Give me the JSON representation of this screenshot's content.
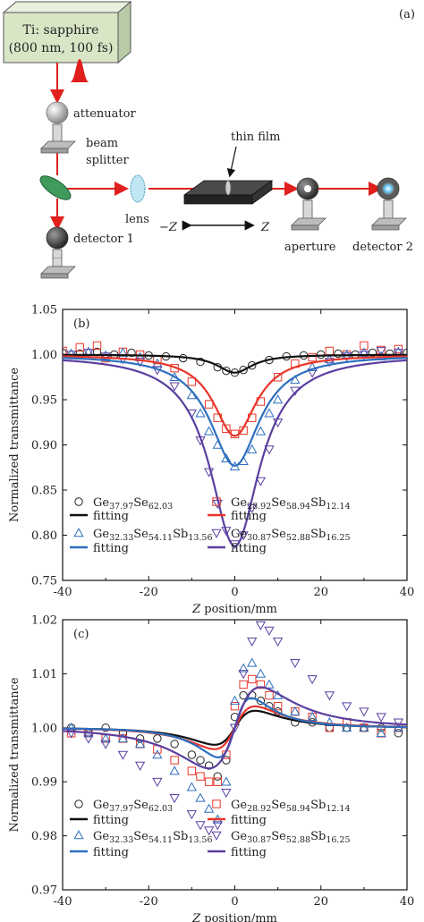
{
  "diagram": {
    "panel_label": "(a)",
    "laser_line1": "Ti: sapphire",
    "laser_line2": "(800 nm, 100 fs)",
    "attenuator": "attenuator",
    "beam_splitter_1": "beam",
    "beam_splitter_2": "splitter",
    "thin_film": "thin film",
    "lens": "lens",
    "minus_z": "−Z",
    "plus_z": "Z",
    "aperture": "aperture",
    "detector1": "detector 1",
    "detector2": "detector 2"
  },
  "chart_data": [
    {
      "type": "scatter",
      "panel_label": "(b)",
      "xlabel": "Z position/mm",
      "ylabel": "Normalized transmittance",
      "xlim": [
        -40,
        40
      ],
      "ylim": [
        0.75,
        1.05
      ],
      "xticks": [
        -40,
        -20,
        0,
        20,
        40
      ],
      "yticks": [
        0.75,
        0.8,
        0.85,
        0.9,
        0.95,
        1.0,
        1.05
      ],
      "legend": [
        {
          "marker": "circle",
          "color": "#222222",
          "base": "Ge",
          "s1": "37.97",
          "m": "Se",
          "s2": "62.03",
          "t": "",
          "s3": ""
        },
        {
          "marker": "square",
          "color": "#e8352a",
          "base": "Ge",
          "s1": "28.92",
          "m": "Se",
          "s2": "58.94",
          "t": "Sb",
          "s3": "12.14"
        },
        {
          "marker": "line",
          "color": "#111111",
          "text": "fitting"
        },
        {
          "marker": "line",
          "color": "#e8352a",
          "text": "fitting"
        },
        {
          "marker": "triangle",
          "color": "#2d6fbe",
          "base": "Ge",
          "s1": "32.33",
          "m": "Se",
          "s2": "54.11",
          "t": "Sb",
          "s3": "13.56"
        },
        {
          "marker": "invtriangle",
          "color": "#5a3fa0",
          "base": "Ge",
          "s1": "30.87",
          "m": "Se",
          "s2": "52.88",
          "t": "Sb",
          "s3": "16.25"
        },
        {
          "marker": "line",
          "color": "#2d6fbe",
          "text": "fitting"
        },
        {
          "marker": "line",
          "color": "#5a3fa0",
          "text": "fitting"
        }
      ],
      "series": [
        {
          "name": "Ge37.97Se62.03",
          "color": "#222222",
          "marker": "circle",
          "fit": {
            "kind": "valley",
            "depth": 0.02,
            "width": 5
          },
          "x": [
            -40,
            -36,
            -32,
            -28,
            -24,
            -20,
            -16,
            -12,
            -8,
            -4,
            -2,
            0,
            2,
            4,
            8,
            12,
            16,
            20,
            24,
            28,
            32,
            36,
            40
          ],
          "y": [
            1.002,
            1.001,
            1.003,
            1.0,
            1.002,
            0.999,
            0.998,
            0.996,
            0.992,
            0.986,
            0.982,
            0.98,
            0.983,
            0.988,
            0.994,
            0.998,
            0.999,
            1.0,
            1.001,
            1.0,
            1.002,
            1.001,
            1.002
          ]
        },
        {
          "name": "Ge28.92Se58.94Sb12.14",
          "color": "#e8352a",
          "marker": "square",
          "fit": {
            "kind": "valley",
            "depth": 0.09,
            "width": 6
          },
          "x": [
            -40,
            -36,
            -32,
            -30,
            -26,
            -22,
            -18,
            -14,
            -10,
            -6,
            -4,
            -2,
            0,
            2,
            4,
            6,
            10,
            14,
            18,
            22,
            26,
            30,
            34,
            38
          ],
          "y": [
            1.004,
            1.008,
            1.01,
            0.996,
            1.003,
            1.0,
            0.994,
            0.985,
            0.97,
            0.945,
            0.93,
            0.918,
            0.912,
            0.916,
            0.93,
            0.948,
            0.975,
            0.99,
            0.997,
            1.004,
            1.0,
            1.01,
            1.005,
            1.006
          ]
        },
        {
          "name": "Ge32.33Se54.11Sb13.56",
          "color": "#2d6fbe",
          "marker": "triangle",
          "fit": {
            "kind": "valley",
            "depth": 0.123,
            "width": 7
          },
          "x": [
            -38,
            -34,
            -30,
            -26,
            -22,
            -18,
            -14,
            -10,
            -8,
            -6,
            -4,
            -2,
            0,
            2,
            4,
            6,
            8,
            10,
            14,
            18,
            22,
            26,
            30,
            34,
            38
          ],
          "y": [
            1.001,
            1.003,
            0.999,
            1.002,
            0.997,
            0.99,
            0.975,
            0.955,
            0.935,
            0.915,
            0.9,
            0.885,
            0.876,
            0.882,
            0.895,
            0.915,
            0.935,
            0.95,
            0.972,
            0.986,
            0.995,
            1.0,
            1.002,
            0.998,
            1.003
          ]
        },
        {
          "name": "Ge30.87Se52.88Sb16.25",
          "color": "#5a3fa0",
          "marker": "invtriangle",
          "fit": {
            "kind": "valley",
            "depth": 0.212,
            "width": 7
          },
          "x": [
            -38,
            -34,
            -30,
            -26,
            -22,
            -18,
            -14,
            -10,
            -8,
            -6,
            -4,
            -2,
            0,
            2,
            4,
            6,
            8,
            10,
            14,
            18,
            22,
            26,
            30,
            34,
            38
          ],
          "y": [
            1.0,
            1.002,
            0.998,
            0.995,
            0.992,
            0.983,
            0.965,
            0.935,
            0.905,
            0.87,
            0.835,
            0.805,
            0.79,
            0.8,
            0.83,
            0.86,
            0.895,
            0.925,
            0.96,
            0.98,
            0.992,
            0.998,
            1.0,
            1.004,
            1.002
          ]
        }
      ]
    },
    {
      "type": "scatter",
      "panel_label": "(c)",
      "xlabel": "Z position/mm",
      "ylabel": "Normalized transmittance",
      "xlim": [
        -40,
        40
      ],
      "ylim": [
        0.97,
        1.02
      ],
      "xticks": [
        -40,
        -20,
        0,
        20,
        40
      ],
      "yticks": [
        0.97,
        0.98,
        0.99,
        1.0,
        1.01,
        1.02
      ],
      "legend": [
        {
          "marker": "circle",
          "color": "#222222",
          "base": "Ge",
          "s1": "37.97",
          "m": "Se",
          "s2": "62.03",
          "t": "",
          "s3": ""
        },
        {
          "marker": "square",
          "color": "#e8352a",
          "base": "Ge",
          "s1": "28.92",
          "m": "Se",
          "s2": "58.94",
          "t": "Sb",
          "s3": "12.14"
        },
        {
          "marker": "line",
          "color": "#111111",
          "text": "fitting"
        },
        {
          "marker": "line",
          "color": "#e8352a",
          "text": "fitting"
        },
        {
          "marker": "triangle",
          "color": "#2d6fbe",
          "base": "Ge",
          "s1": "32.33",
          "m": "Se",
          "s2": "54.11",
          "t": "Sb",
          "s3": "13.56"
        },
        {
          "marker": "invtriangle",
          "color": "#5a3fa0",
          "base": "Ge",
          "s1": "30.87",
          "m": "Se",
          "s2": "52.88",
          "t": "Sb",
          "s3": "16.25"
        },
        {
          "marker": "line",
          "color": "#2d6fbe",
          "text": "fitting"
        },
        {
          "marker": "line",
          "color": "#5a3fa0",
          "text": "fitting"
        }
      ],
      "series": [
        {
          "name": "Ge37.97Se62.03",
          "color": "#222222",
          "marker": "circle",
          "fit": {
            "kind": "dispersive",
            "amp": 0.0155,
            "z0": 5.5
          },
          "x": [
            -38,
            -34,
            -30,
            -26,
            -22,
            -18,
            -14,
            -10,
            -8,
            -6,
            -4,
            -2,
            0,
            2,
            4,
            6,
            8,
            10,
            14,
            18,
            22,
            26,
            30,
            34,
            38
          ],
          "y": [
            1.0,
            0.999,
            1.0,
            0.999,
            0.998,
            0.998,
            0.997,
            0.995,
            0.994,
            0.993,
            0.991,
            0.994,
            1.002,
            1.006,
            1.006,
            1.005,
            1.004,
            1.003,
            1.001,
            1.001,
            1.0,
            1.0,
            1.0,
            1.0,
            0.999
          ]
        },
        {
          "name": "Ge28.92Se58.94Sb12.14",
          "color": "#e8352a",
          "marker": "square",
          "fit": {
            "kind": "dispersive",
            "amp": 0.0195,
            "z0": 5.5
          },
          "x": [
            -38,
            -34,
            -30,
            -26,
            -22,
            -18,
            -14,
            -10,
            -8,
            -6,
            -4,
            -2,
            0,
            2,
            4,
            6,
            8,
            10,
            14,
            18,
            22,
            26,
            30,
            34,
            38
          ],
          "y": [
            0.999,
            0.999,
            0.998,
            0.998,
            0.997,
            0.996,
            0.994,
            0.992,
            0.991,
            0.99,
            0.99,
            0.995,
            1.004,
            1.008,
            1.009,
            1.008,
            1.006,
            1.004,
            1.003,
            1.002,
            1.0,
            1.001,
            1.0,
            0.999,
            1.0
          ]
        },
        {
          "name": "Ge32.33Se54.11Sb13.56",
          "color": "#2d6fbe",
          "marker": "triangle",
          "fit": {
            "kind": "dispersive",
            "amp": 0.027,
            "z0": 4.5
          },
          "x": [
            -38,
            -34,
            -30,
            -26,
            -22,
            -18,
            -14,
            -10,
            -8,
            -6,
            -4,
            -2,
            0,
            2,
            4,
            6,
            8,
            10,
            14,
            18,
            22,
            26,
            30,
            34,
            38
          ],
          "y": [
            1.0,
            0.999,
            0.998,
            0.998,
            0.997,
            0.995,
            0.992,
            0.989,
            0.987,
            0.985,
            0.983,
            0.99,
            1.005,
            1.011,
            1.012,
            1.01,
            1.008,
            1.006,
            1.003,
            1.002,
            1.001,
            1.0,
            1.0,
            0.999,
            1.0
          ]
        },
        {
          "name": "Ge30.87Se52.88Sb16.25",
          "color": "#5a3fa0",
          "marker": "invtriangle",
          "fit": {
            "kind": "dispersive",
            "amp": 0.037,
            "z0": 7
          },
          "x": [
            -38,
            -34,
            -30,
            -26,
            -22,
            -18,
            -14,
            -10,
            -8,
            -6,
            -4,
            -2,
            0,
            2,
            4,
            6,
            8,
            10,
            14,
            18,
            22,
            26,
            30,
            34,
            38
          ],
          "y": [
            0.999,
            0.998,
            0.997,
            0.995,
            0.993,
            0.99,
            0.987,
            0.984,
            0.982,
            0.981,
            0.982,
            0.988,
            1.0,
            1.01,
            1.016,
            1.019,
            1.018,
            1.016,
            1.012,
            1.009,
            1.006,
            1.004,
            1.003,
            1.002,
            1.001
          ]
        }
      ]
    }
  ]
}
